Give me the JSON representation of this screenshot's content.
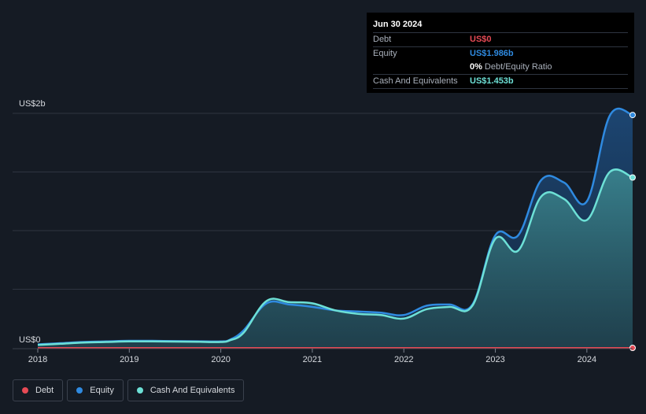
{
  "tooltip": {
    "date": "Jun 30 2024",
    "debt_label": "Debt",
    "debt_value": "US$0",
    "equity_label": "Equity",
    "equity_value": "US$1.986b",
    "ratio_value": "0%",
    "ratio_label": "Debt/Equity Ratio",
    "cash_label": "Cash And Equivalents",
    "cash_value": "US$1.453b"
  },
  "colors": {
    "background": "#151b24",
    "debt": "#e64a55",
    "equity": "#2f8ae0",
    "cash": "#6de0d6",
    "grid": "#2e3440"
  },
  "legend": [
    {
      "label": "Debt",
      "color": "#e64a55"
    },
    {
      "label": "Equity",
      "color": "#2f8ae0"
    },
    {
      "label": "Cash And Equivalents",
      "color": "#6de0d6"
    }
  ],
  "chart_data": {
    "type": "area",
    "y_top_label": "US$2b",
    "y_bottom_label": "US$0",
    "ylim": [
      0,
      2.0
    ],
    "xlim": [
      2018.0,
      2024.5
    ],
    "x_ticks": [
      2018,
      2019,
      2020,
      2021,
      2022,
      2023,
      2024
    ],
    "x_tick_labels": [
      "2018",
      "2019",
      "2020",
      "2021",
      "2022",
      "2023",
      "2024"
    ],
    "grid": true,
    "series": [
      {
        "name": "Debt",
        "x": [
          2018.0,
          2024.5
        ],
        "y": [
          0,
          0
        ]
      },
      {
        "name": "Equity",
        "x": [
          2018.0,
          2018.25,
          2018.5,
          2018.75,
          2019.0,
          2019.25,
          2019.5,
          2019.75,
          2020.0,
          2020.1,
          2020.25,
          2020.5,
          2020.75,
          2021.0,
          2021.25,
          2021.5,
          2021.75,
          2022.0,
          2022.25,
          2022.5,
          2022.75,
          2023.0,
          2023.25,
          2023.5,
          2023.75,
          2024.0,
          2024.25,
          2024.5
        ],
        "y": [
          0.03,
          0.04,
          0.05,
          0.055,
          0.06,
          0.06,
          0.058,
          0.056,
          0.055,
          0.07,
          0.15,
          0.38,
          0.37,
          0.35,
          0.32,
          0.31,
          0.3,
          0.28,
          0.36,
          0.37,
          0.37,
          0.96,
          0.96,
          1.43,
          1.41,
          1.25,
          1.98,
          1.986
        ]
      },
      {
        "name": "Cash And Equivalents",
        "x": [
          2018.0,
          2018.25,
          2018.5,
          2018.75,
          2019.0,
          2019.25,
          2019.5,
          2019.75,
          2020.0,
          2020.1,
          2020.25,
          2020.5,
          2020.75,
          2021.0,
          2021.25,
          2021.5,
          2021.75,
          2022.0,
          2022.25,
          2022.5,
          2022.75,
          2023.0,
          2023.25,
          2023.5,
          2023.75,
          2024.0,
          2024.25,
          2024.5
        ],
        "y": [
          0.025,
          0.035,
          0.045,
          0.05,
          0.055,
          0.055,
          0.054,
          0.052,
          0.05,
          0.065,
          0.13,
          0.4,
          0.39,
          0.38,
          0.32,
          0.29,
          0.28,
          0.25,
          0.33,
          0.35,
          0.36,
          0.93,
          0.83,
          1.29,
          1.27,
          1.09,
          1.5,
          1.453
        ]
      }
    ]
  }
}
